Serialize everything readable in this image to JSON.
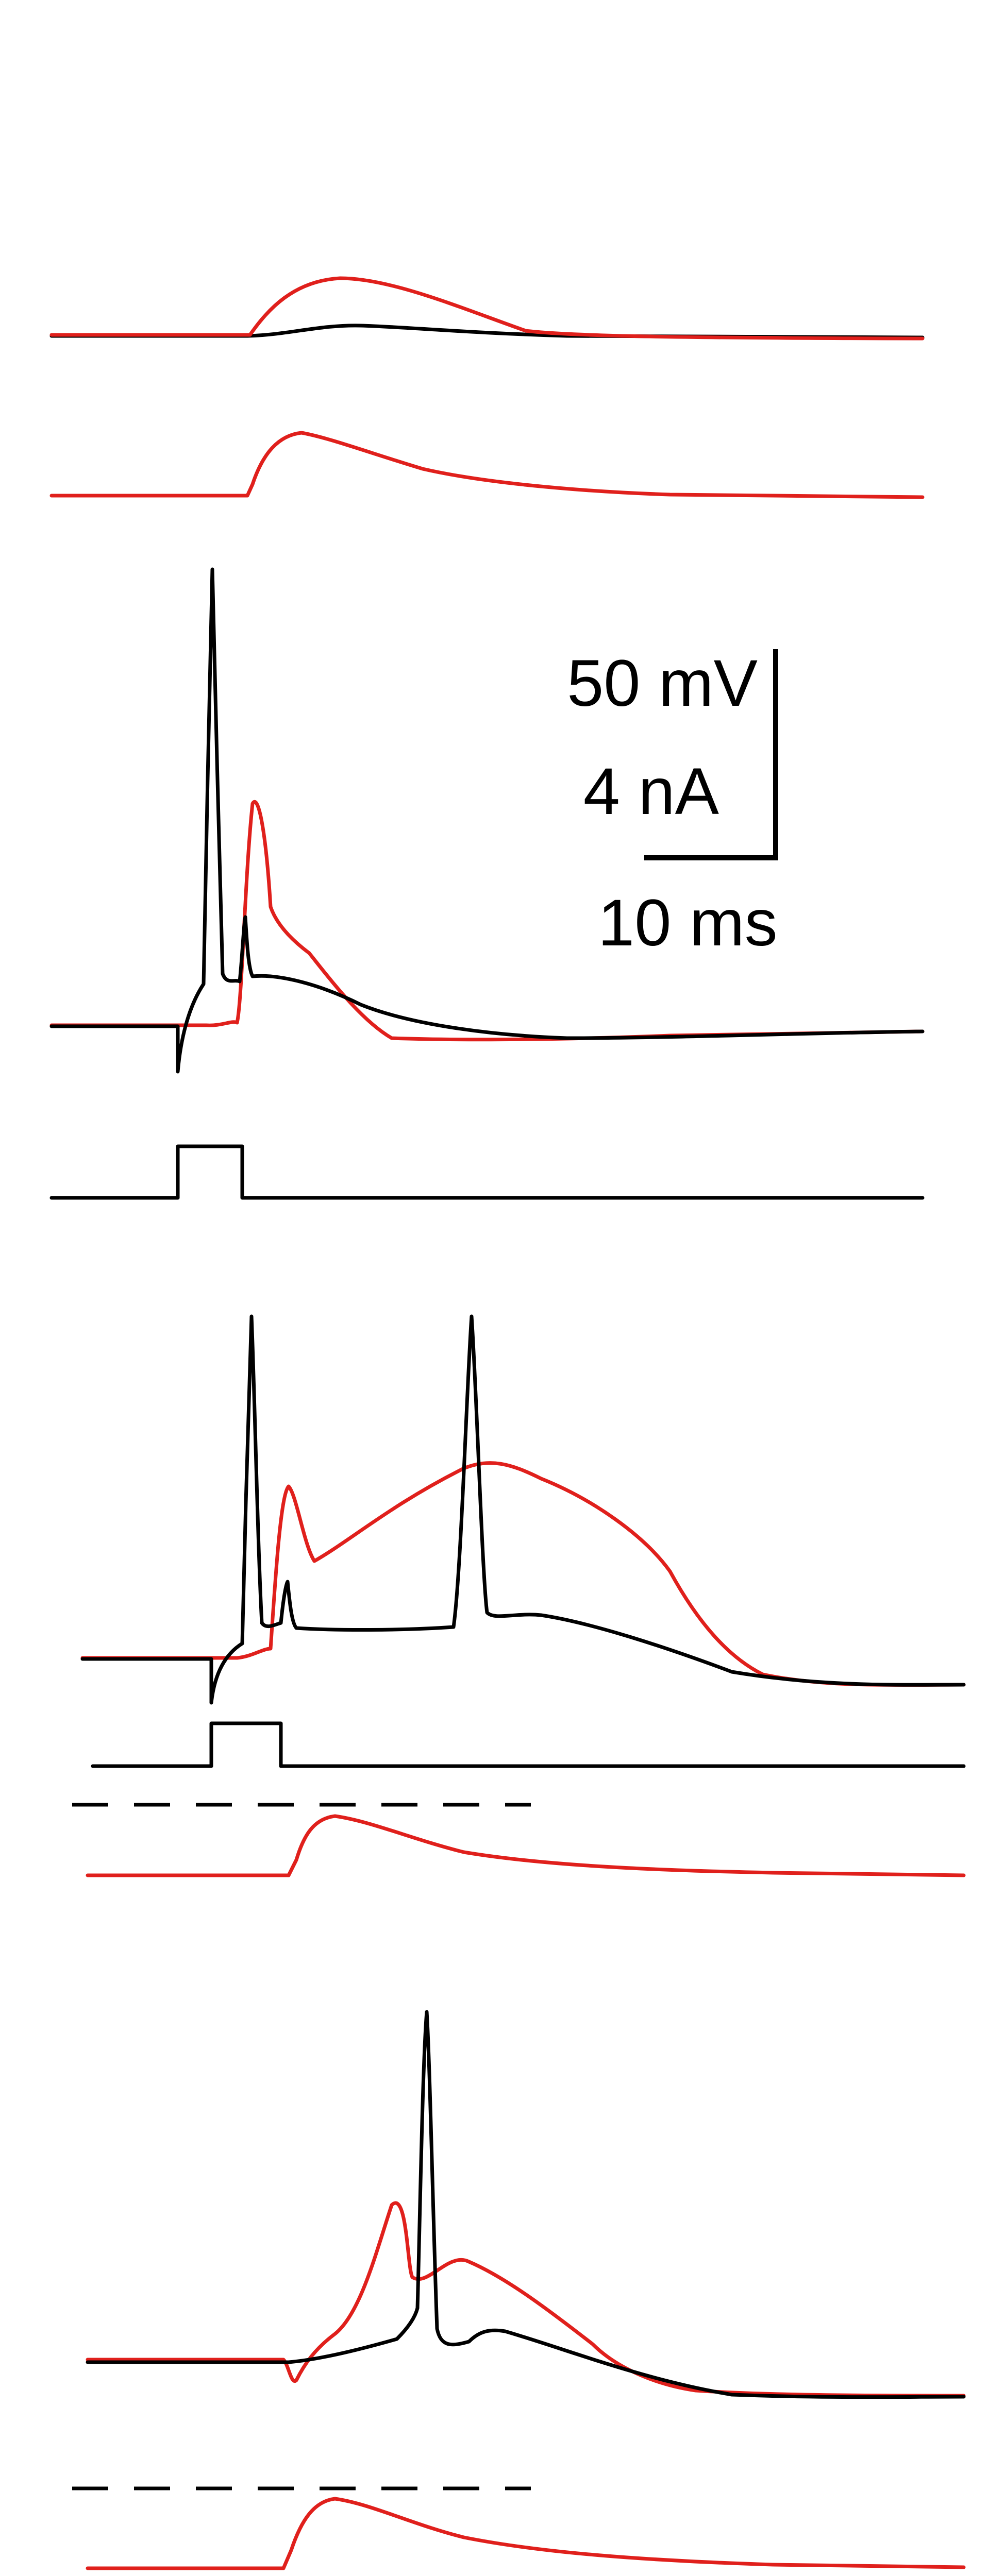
{
  "scale_bar": {
    "voltage_label": "50 mV",
    "current_label": "4 nA",
    "time_label": "10 ms"
  },
  "colors": {
    "black_trace": "#000000",
    "red_trace": "#e0201c",
    "text": "#000000"
  }
}
